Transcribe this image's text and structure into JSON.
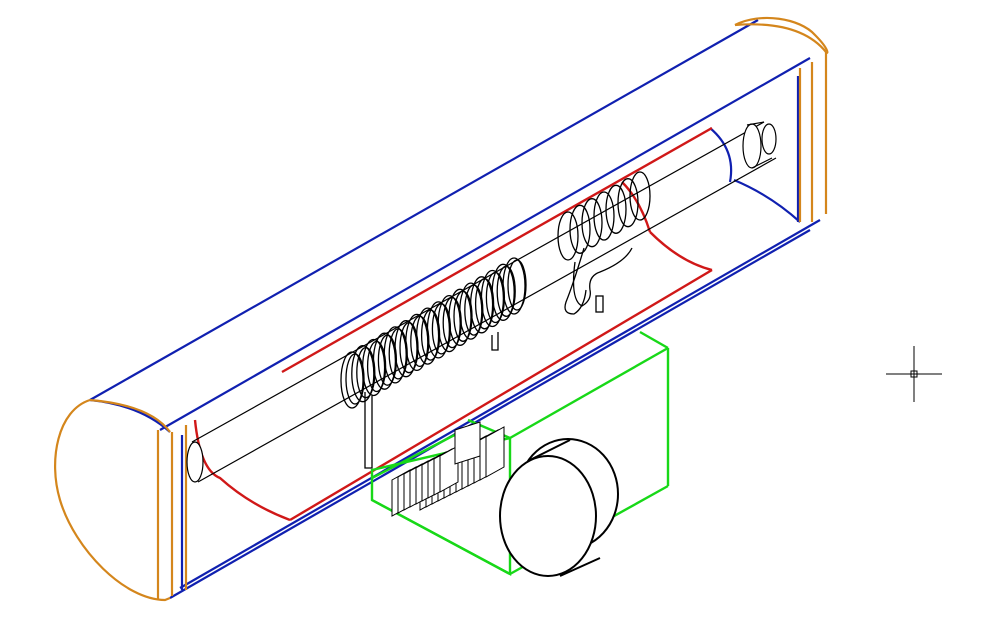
{
  "canvas": {
    "background": "#ffffff"
  },
  "colors": {
    "outline": "#000000",
    "end_caps": "#d4861c",
    "housing_edges": "#1020b0",
    "frame": "#d01818",
    "base_box": "#18d818",
    "rod": "#000000"
  },
  "icons": {
    "cursor": "crosshair-cursor-icon"
  }
}
